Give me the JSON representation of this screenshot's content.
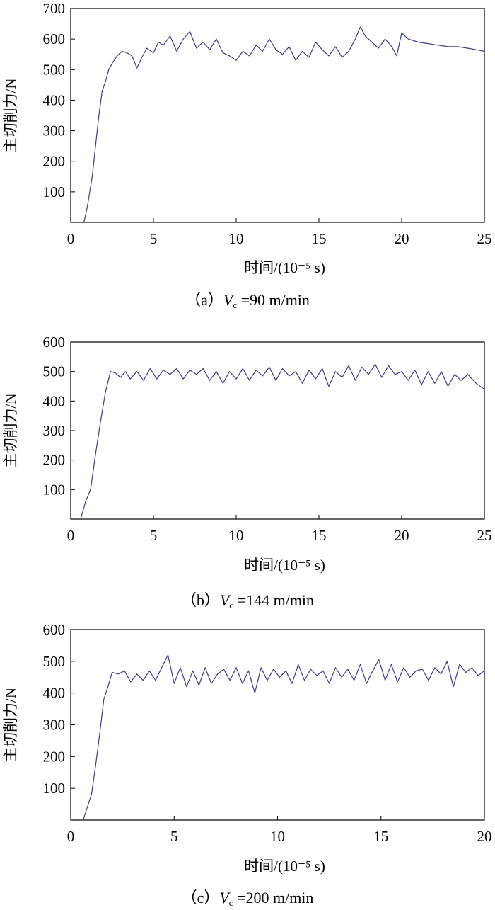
{
  "chart_data": [
    {
      "type": "line",
      "panel": "a",
      "caption": {
        "prefix": "（a）",
        "var": "V",
        "sub": "c",
        "rest": " =90 m/min"
      },
      "xlabel": "时间/(10⁻⁵ s)",
      "ylabel": "主切削力/N",
      "xlim": [
        0,
        25
      ],
      "ylim": [
        0,
        700
      ],
      "xticks": [
        "0",
        "5",
        "10",
        "15",
        "20",
        "25"
      ],
      "yticks": [
        "100",
        "200",
        "300",
        "400",
        "500",
        "600",
        "700"
      ],
      "line_color": "#3b3b8f",
      "series": [
        {
          "x": [
            0.8,
            1.0,
            1.3,
            1.5,
            1.7,
            1.9,
            2.1,
            2.3,
            2.5,
            2.8,
            3.1,
            3.4,
            3.7,
            4.0,
            4.3,
            4.6,
            5.0,
            5.3,
            5.6,
            6.0,
            6.4,
            6.8,
            7.2,
            7.6,
            8.0,
            8.4,
            8.8,
            9.2,
            9.6,
            10.0,
            10.4,
            10.8,
            11.2,
            11.6,
            12.0,
            12.4,
            12.8,
            13.2,
            13.6,
            14.0,
            14.4,
            14.8,
            15.2,
            15.6,
            16.0,
            16.4,
            16.8,
            17.2,
            17.5,
            17.8,
            18.2,
            18.6,
            19.0,
            19.4,
            19.7,
            20.0,
            20.4,
            21.0,
            21.6,
            22.2,
            22.8,
            23.4,
            24.0,
            24.5,
            25.0
          ],
          "y": [
            0,
            50,
            150,
            250,
            350,
            430,
            460,
            500,
            520,
            545,
            560,
            555,
            545,
            505,
            540,
            570,
            555,
            590,
            580,
            610,
            560,
            600,
            625,
            570,
            590,
            565,
            600,
            555,
            545,
            530,
            560,
            545,
            580,
            560,
            600,
            565,
            550,
            575,
            530,
            560,
            540,
            590,
            565,
            545,
            575,
            540,
            560,
            600,
            640,
            610,
            590,
            570,
            600,
            575,
            545,
            620,
            600,
            590,
            585,
            580,
            575,
            575,
            570,
            565,
            560
          ]
        }
      ]
    },
    {
      "type": "line",
      "panel": "b",
      "caption": {
        "prefix": "（b）",
        "var": "V",
        "sub": "c",
        "rest": " =144 m/min"
      },
      "xlabel": "时间/(10⁻⁵ s)",
      "ylabel": "主切削力/N",
      "xlim": [
        0,
        25
      ],
      "ylim": [
        0,
        600
      ],
      "xticks": [
        "0",
        "5",
        "10",
        "15",
        "20",
        "25"
      ],
      "yticks": [
        "100",
        "200",
        "300",
        "400",
        "500",
        "600"
      ],
      "line_color": "#3b3b8f",
      "series": [
        {
          "x": [
            0.6,
            0.9,
            1.2,
            1.5,
            1.8,
            2.1,
            2.4,
            2.7,
            3.0,
            3.3,
            3.6,
            4.0,
            4.4,
            4.8,
            5.2,
            5.6,
            6.0,
            6.4,
            6.8,
            7.2,
            7.6,
            8.0,
            8.4,
            8.8,
            9.2,
            9.6,
            10.0,
            10.4,
            10.8,
            11.2,
            11.6,
            12.0,
            12.4,
            12.8,
            13.2,
            13.6,
            14.0,
            14.4,
            14.8,
            15.2,
            15.6,
            16.0,
            16.4,
            16.8,
            17.2,
            17.6,
            18.0,
            18.4,
            18.8,
            19.2,
            19.6,
            20.0,
            20.4,
            20.8,
            21.2,
            21.6,
            22.0,
            22.4,
            22.8,
            23.2,
            23.6,
            24.0,
            24.5,
            25.0
          ],
          "y": [
            0,
            60,
            100,
            220,
            330,
            430,
            500,
            495,
            480,
            500,
            475,
            500,
            470,
            510,
            475,
            505,
            490,
            510,
            475,
            505,
            490,
            510,
            470,
            500,
            460,
            500,
            475,
            510,
            470,
            505,
            485,
            515,
            470,
            510,
            485,
            500,
            460,
            505,
            475,
            510,
            450,
            500,
            480,
            520,
            470,
            515,
            490,
            525,
            480,
            520,
            490,
            500,
            470,
            505,
            455,
            500,
            460,
            500,
            450,
            490,
            470,
            490,
            460,
            440
          ]
        }
      ]
    },
    {
      "type": "line",
      "panel": "c",
      "caption": {
        "prefix": "（c）",
        "var": "V",
        "sub": "c",
        "rest": " =200 m/min"
      },
      "xlabel": "时间/(10⁻⁵ s)",
      "ylabel": "主切削力/N",
      "xlim": [
        0,
        20
      ],
      "ylim": [
        0,
        600
      ],
      "xticks": [
        "0",
        "5",
        "10",
        "15",
        "20"
      ],
      "yticks": [
        "100",
        "200",
        "300",
        "400",
        "500",
        "600"
      ],
      "line_color": "#3b3b8f",
      "series": [
        {
          "x": [
            0.6,
            0.8,
            1.0,
            1.2,
            1.4,
            1.6,
            1.8,
            2.0,
            2.3,
            2.6,
            2.9,
            3.2,
            3.5,
            3.8,
            4.1,
            4.4,
            4.7,
            5.0,
            5.3,
            5.6,
            5.9,
            6.2,
            6.5,
            6.8,
            7.1,
            7.4,
            7.7,
            8.0,
            8.3,
            8.6,
            8.9,
            9.2,
            9.5,
            9.8,
            10.1,
            10.4,
            10.7,
            11.0,
            11.3,
            11.6,
            11.9,
            12.2,
            12.5,
            12.8,
            13.1,
            13.4,
            13.7,
            14.0,
            14.3,
            14.6,
            14.9,
            15.2,
            15.5,
            15.8,
            16.1,
            16.4,
            16.7,
            17.0,
            17.3,
            17.6,
            17.9,
            18.2,
            18.5,
            18.8,
            19.1,
            19.4,
            19.7,
            20.0
          ],
          "y": [
            0,
            40,
            80,
            170,
            270,
            380,
            420,
            465,
            460,
            470,
            435,
            460,
            440,
            470,
            440,
            480,
            520,
            430,
            480,
            420,
            470,
            425,
            480,
            430,
            460,
            475,
            440,
            480,
            430,
            470,
            400,
            480,
            440,
            475,
            450,
            470,
            430,
            490,
            440,
            475,
            455,
            470,
            430,
            480,
            450,
            475,
            440,
            490,
            430,
            470,
            505,
            440,
            490,
            435,
            480,
            450,
            470,
            475,
            440,
            480,
            460,
            500,
            420,
            490,
            465,
            480,
            455,
            470
          ]
        }
      ]
    }
  ]
}
